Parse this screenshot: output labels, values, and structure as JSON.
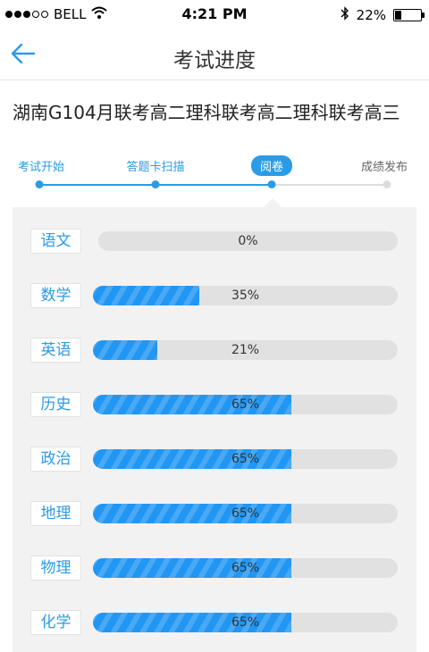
{
  "status_bar": {
    "carrier": "BELL",
    "time": "4:21 PM",
    "battery": "22%",
    "battery_level": 0.22,
    "icons": [
      "signal-dots",
      "wifi-icon",
      "bluetooth-icon",
      "battery-icon"
    ]
  },
  "nav": {
    "title": "考试进度",
    "back_icon": "arrow-left-icon"
  },
  "exam": {
    "title": "湖南G104月联考高二理科联考高二理科联考高三"
  },
  "steps": [
    {
      "label": "考试开始",
      "state": "done"
    },
    {
      "label": "答题卡扫描",
      "state": "done"
    },
    {
      "label": "阅卷",
      "state": "active"
    },
    {
      "label": "成绩发布",
      "state": "todo"
    }
  ],
  "subjects": [
    {
      "name": "语文",
      "percent_label": "0%",
      "progress": 0
    },
    {
      "name": "数学",
      "percent_label": "35%",
      "progress": 35
    },
    {
      "name": "英语",
      "percent_label": "21%",
      "progress": 21
    },
    {
      "name": "历史",
      "percent_label": "65%",
      "progress": 65
    },
    {
      "name": "政治",
      "percent_label": "65%",
      "progress": 65
    },
    {
      "name": "地理",
      "percent_label": "65%",
      "progress": 65
    },
    {
      "name": "物理",
      "percent_label": "65%",
      "progress": 65
    },
    {
      "name": "化学",
      "percent_label": "65%",
      "progress": 65
    }
  ],
  "colors": {
    "accent": "#2a9be6",
    "progress_fill": "#2196f3",
    "track": "#e1e1e1",
    "panel": "#f2f2f2",
    "inactive_line": "#dddddd"
  }
}
